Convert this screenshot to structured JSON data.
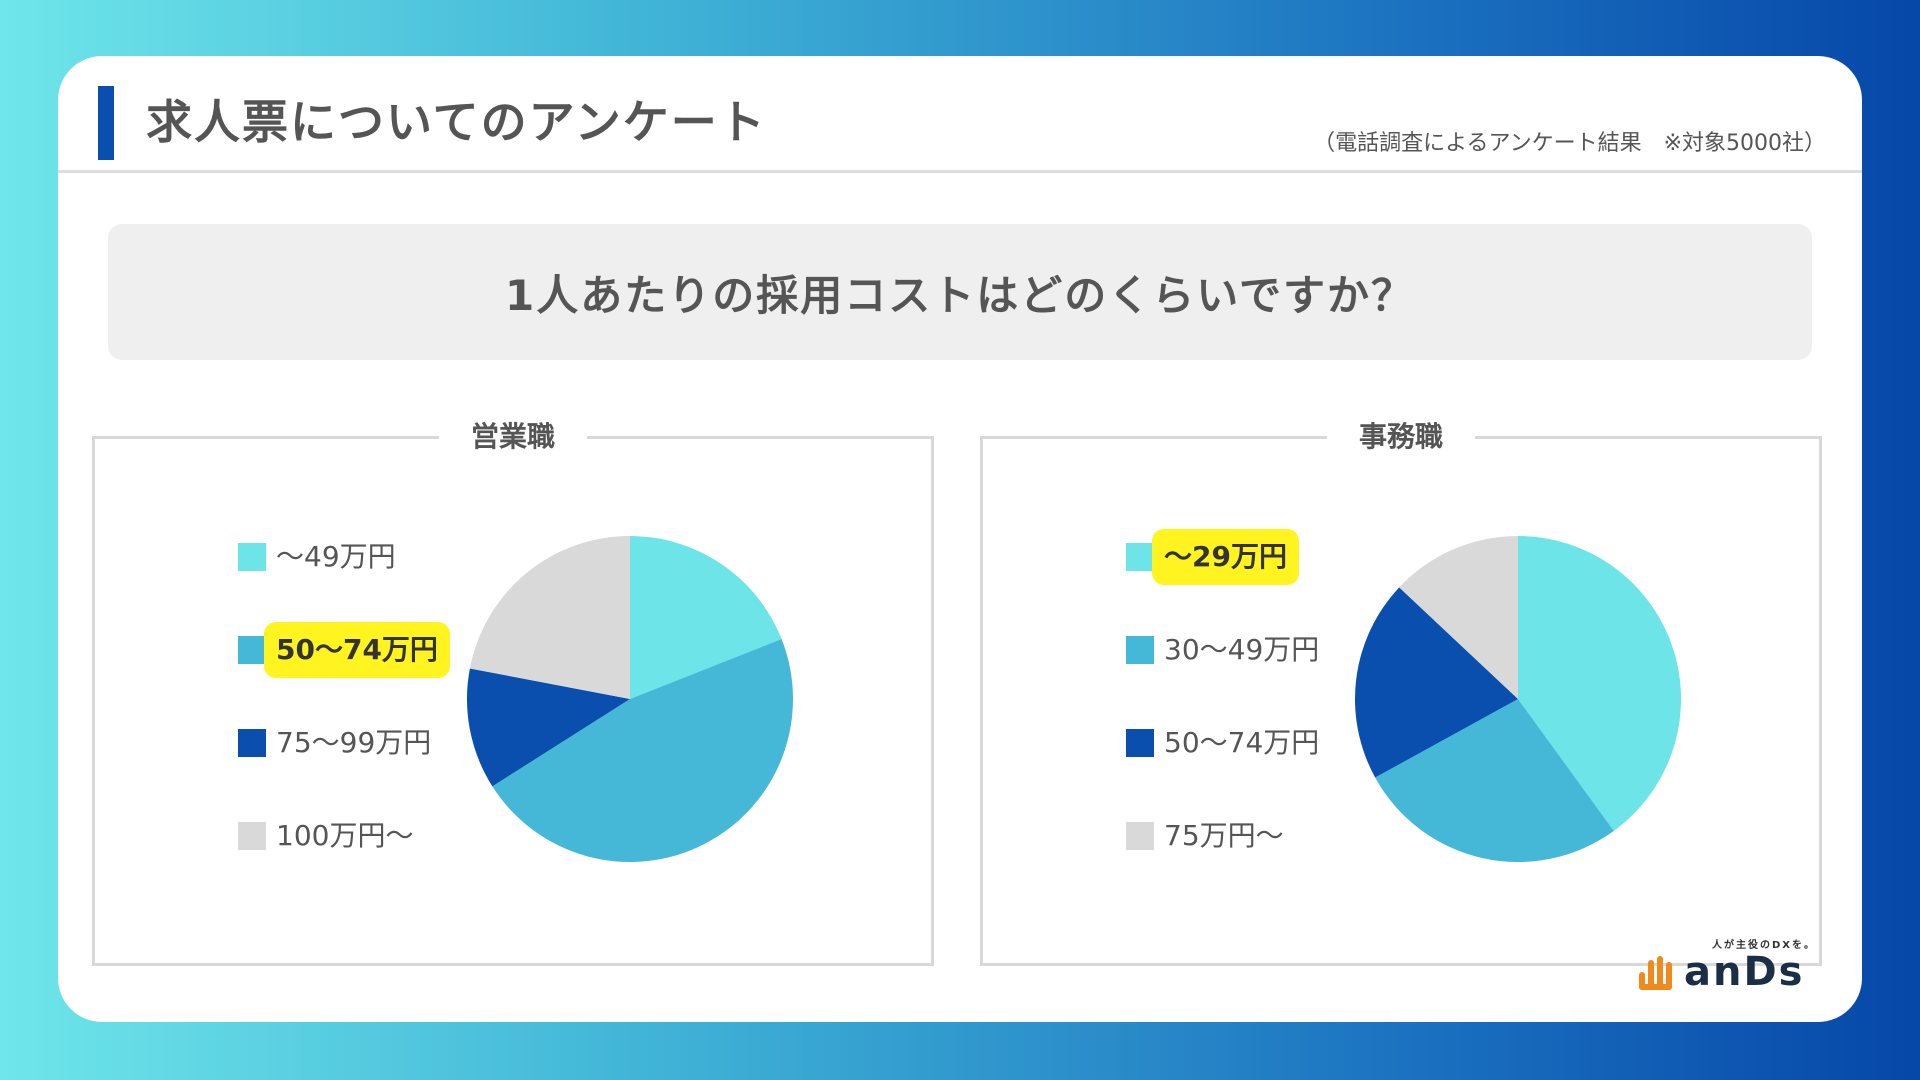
{
  "header": {
    "title": "求人票についてのアンケート",
    "subtitle": "（電話調査によるアンケート結果　※対象5000社）"
  },
  "question": "1人あたりの採用コストはどのくらいですか？",
  "brand": {
    "tagline": "人が主役のDXを。",
    "name": "anDs"
  },
  "colors": {
    "background_gradient": [
      "#6ee6ea",
      "#3fb2d6",
      "#1a6fbf",
      "#0647a8"
    ],
    "accent": "#0a4fae",
    "highlight": "#fff320",
    "text": "#555555"
  },
  "chart_data": [
    {
      "type": "pie",
      "title": "営業職",
      "highlight_index": 1,
      "slices": [
        {
          "label": "〜49万円",
          "value": 19,
          "color": "#6ce4e8"
        },
        {
          "label": "50〜74万円",
          "value": 47,
          "color": "#45b8d8"
        },
        {
          "label": "75〜99万円",
          "value": 12,
          "color": "#0a4fae"
        },
        {
          "label": "100万円〜",
          "value": 22,
          "color": "#d9d9d9"
        }
      ]
    },
    {
      "type": "pie",
      "title": "事務職",
      "highlight_index": 0,
      "slices": [
        {
          "label": "〜29万円",
          "value": 40,
          "color": "#6ce4e8"
        },
        {
          "label": "30〜49万円",
          "value": 27,
          "color": "#45b8d8"
        },
        {
          "label": "50〜74万円",
          "value": 20,
          "color": "#0a4fae"
        },
        {
          "label": "75万円〜",
          "value": 13,
          "color": "#d9d9d9"
        }
      ]
    }
  ]
}
